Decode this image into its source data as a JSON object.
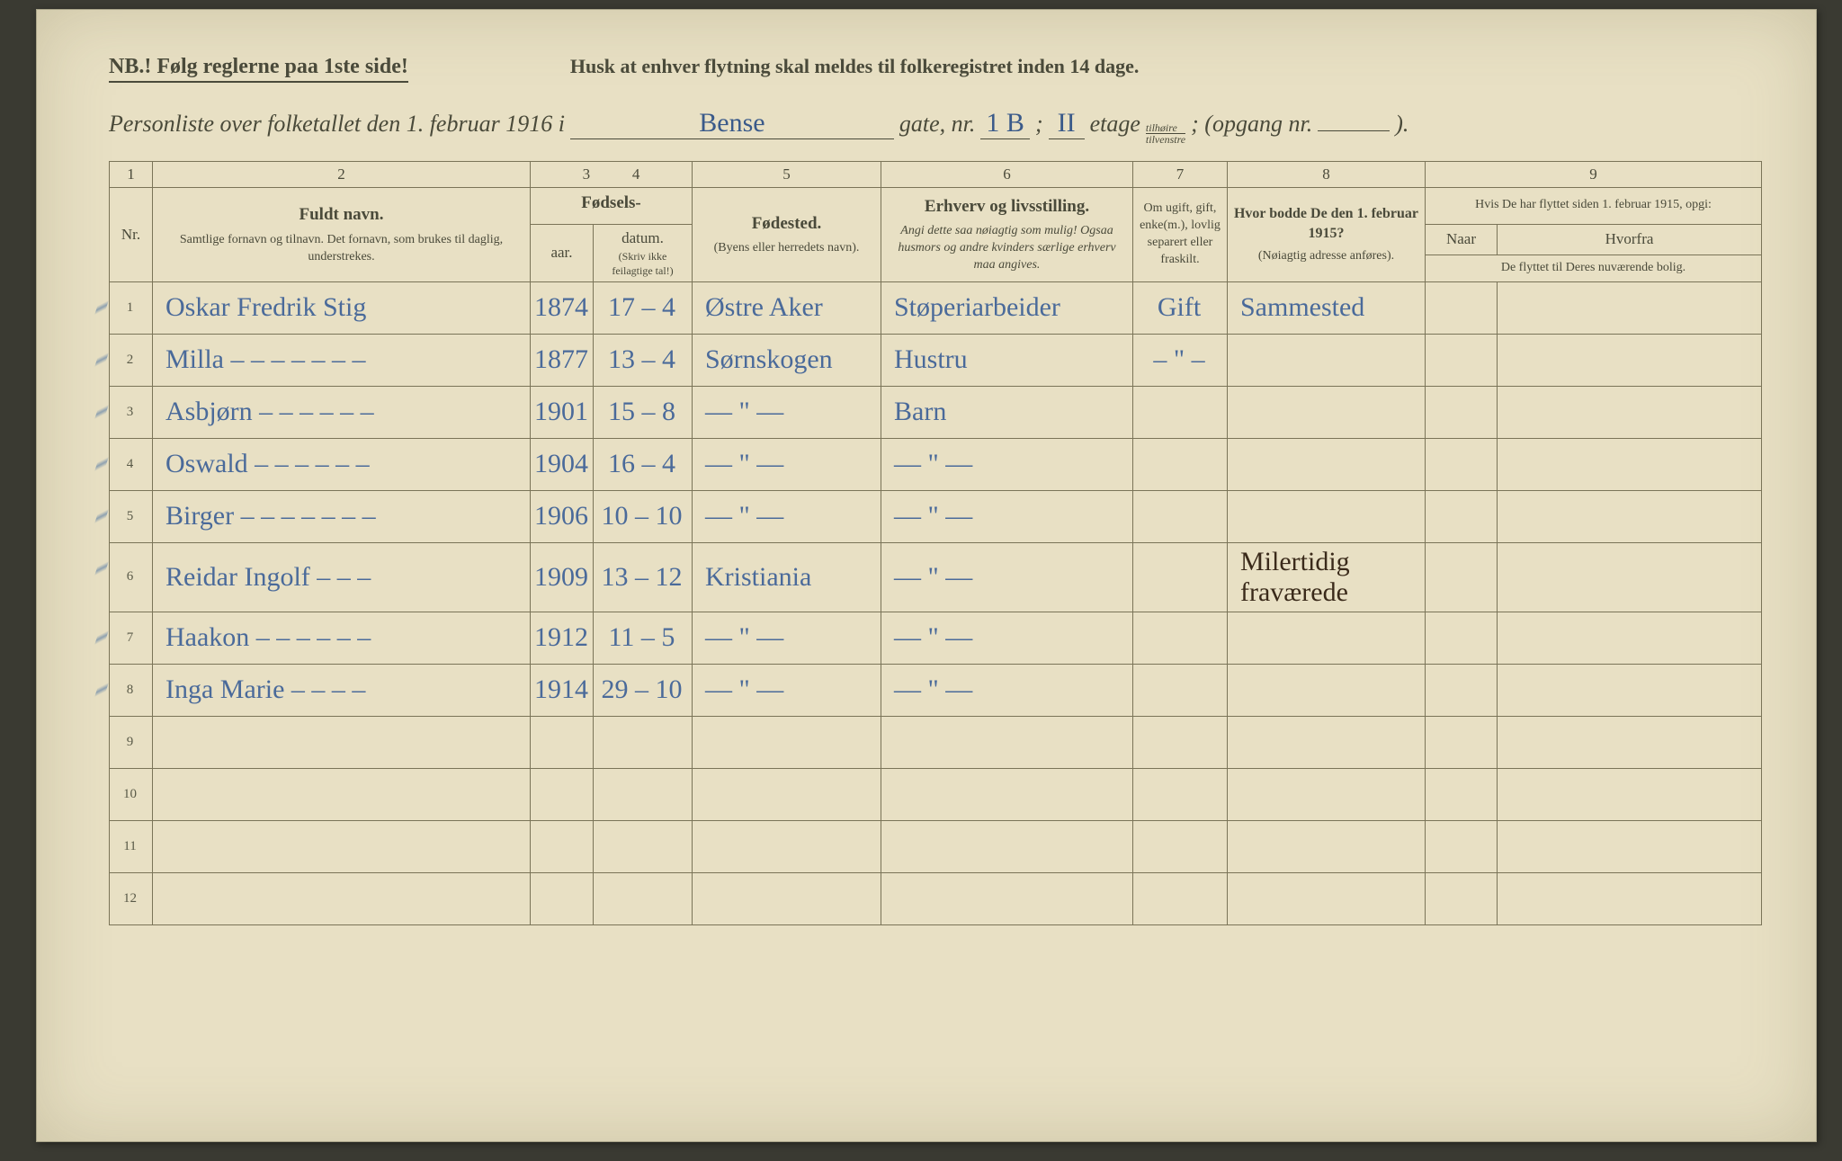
{
  "header": {
    "nb": "NB.! Følg reglerne paa 1ste side!",
    "husk": "Husk at enhver flytning skal meldes til folkeregistret inden 14 dage.",
    "intro": "Personliste over folketallet den 1. februar 1916 i",
    "street": "Bense",
    "gate_label": "gate, nr.",
    "house_nr": "1 B",
    "sep": ";",
    "etage_val": "II",
    "etage_label": "etage",
    "side_top": "tilhøire",
    "side_bot": "tilvenstre",
    "opgang_label": "; (opgang nr.",
    "opgang_val": "",
    "close": ")."
  },
  "columns": {
    "nums": [
      "1",
      "2",
      "3",
      "4",
      "5",
      "6",
      "7",
      "8",
      "9"
    ],
    "nr": "Nr.",
    "name_title": "Fuldt navn.",
    "name_sub": "Samtlige fornavn og tilnavn. Det fornavn, som brukes til daglig, understrekes.",
    "birth_title": "Fødsels-",
    "birth_year": "aar.",
    "birth_date": "datum.",
    "birth_note": "(Skriv ikke feilagtige tal!)",
    "birthplace_title": "Fødested.",
    "birthplace_sub": "(Byens eller herredets navn).",
    "occ_title": "Erhverv og livsstilling.",
    "occ_sub": "Angi dette saa nøiagtig som mulig! Ogsaa husmors og andre kvinders særlige erhverv maa angives.",
    "marital": "Om ugift, gift, enke(m.), lovlig separert eller fraskilt.",
    "prev_title": "Hvor bodde De den 1. februar 1915?",
    "prev_sub": "(Nøiagtig adresse anføres).",
    "moved_title": "Hvis De har flyttet siden 1. februar 1915, opgi:",
    "moved_when": "Naar",
    "moved_from": "Hvorfra",
    "moved_note": "De flyttet til Deres nuværende bolig."
  },
  "rows": [
    {
      "nr": "1",
      "name": "Oskar Fredrik Stig",
      "year": "1874",
      "date": "17 – 4",
      "birthplace": "Østre Aker",
      "occ": "Støperiarbeider",
      "marital": "Gift",
      "prev": "Sammested",
      "m1": "",
      "m2": ""
    },
    {
      "nr": "2",
      "name": "Milla  – – – – – – –",
      "year": "1877",
      "date": "13 – 4",
      "birthplace": "Sørnskogen",
      "occ": "Hustru",
      "marital": "– \" –",
      "prev": "",
      "m1": "",
      "m2": ""
    },
    {
      "nr": "3",
      "name": "Asbjørn – – – – – –",
      "year": "1901",
      "date": "15 – 8",
      "birthplace": "—  \"  —",
      "occ": "Barn",
      "marital": "",
      "prev": "",
      "m1": "",
      "m2": ""
    },
    {
      "nr": "4",
      "name": "Oswald – – – – – –",
      "year": "1904",
      "date": "16 – 4",
      "birthplace": "—  \"  —",
      "occ": "—  \"  —",
      "marital": "",
      "prev": "",
      "m1": "",
      "m2": ""
    },
    {
      "nr": "5",
      "name": "Birger – – – – – – –",
      "year": "1906",
      "date": "10 – 10",
      "birthplace": "—  \"  —",
      "occ": "—  \"  —",
      "marital": "",
      "prev": "",
      "m1": "",
      "m2": ""
    },
    {
      "nr": "6",
      "name": "Reidar Ingolf – – –",
      "year": "1909",
      "date": "13 – 12",
      "birthplace": "Kristiania",
      "occ": "—  \"  —",
      "marital": "",
      "prev": "Milertidig fraværede",
      "m1": "",
      "m2": "",
      "prev_dark": true
    },
    {
      "nr": "7",
      "name": "Haakon – – – – – –",
      "year": "1912",
      "date": "11 – 5",
      "birthplace": "—  \"  —",
      "occ": "—  \"  —",
      "marital": "",
      "prev": "",
      "m1": "",
      "m2": ""
    },
    {
      "nr": "8",
      "name": "Inga Marie – – – –",
      "year": "1914",
      "date": "29 – 10",
      "birthplace": "—  \"  —",
      "occ": "—  \"  —",
      "marital": "",
      "prev": "",
      "m1": "",
      "m2": ""
    },
    {
      "nr": "9",
      "name": "",
      "year": "",
      "date": "",
      "birthplace": "",
      "occ": "",
      "marital": "",
      "prev": "",
      "m1": "",
      "m2": "",
      "empty": true
    },
    {
      "nr": "10",
      "name": "",
      "year": "",
      "date": "",
      "birthplace": "",
      "occ": "",
      "marital": "",
      "prev": "",
      "m1": "",
      "m2": "",
      "empty": true
    },
    {
      "nr": "11",
      "name": "",
      "year": "",
      "date": "",
      "birthplace": "",
      "occ": "",
      "marital": "",
      "prev": "",
      "m1": "",
      "m2": "",
      "empty": true
    },
    {
      "nr": "12",
      "name": "",
      "year": "",
      "date": "",
      "birthplace": "",
      "occ": "",
      "marital": "",
      "prev": "",
      "m1": "",
      "m2": "",
      "empty": true
    }
  ],
  "style": {
    "paper_bg": "#e8e0c4",
    "ink_printed": "#4a4a3a",
    "ink_handwriting": "#4a6a9a",
    "ink_dark": "#3a2a1a",
    "rule_color": "#7a7458"
  }
}
